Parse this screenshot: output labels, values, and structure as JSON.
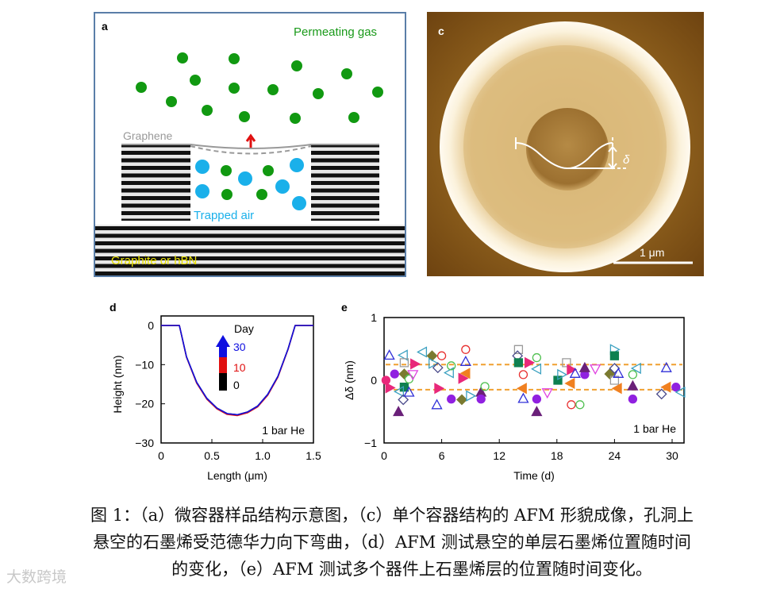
{
  "panel_a": {
    "label": "a",
    "permeating_gas": "Permeating gas",
    "graphene": "Graphene",
    "trapped_air": "Trapped air",
    "substrate": "Graphite or  hBN"
  },
  "panel_c": {
    "label": "c",
    "delta": "δ",
    "scale_bar": "1 μm"
  },
  "chart_data": [
    {
      "panel": "d",
      "type": "line",
      "xlabel": "Length (μm)",
      "ylabel": "Height (nm)",
      "xlim": [
        0,
        1.5
      ],
      "ylim": [
        -30,
        0
      ],
      "xticks": [
        "0",
        "0.5",
        "1.0",
        "1.5"
      ],
      "yticks": [
        "0",
        "−10",
        "−20",
        "−30"
      ],
      "annotation": "1 bar He",
      "legend_title": "Day",
      "legend": [
        "30",
        "10",
        "0"
      ],
      "x": [
        0,
        0.18,
        0.25,
        0.35,
        0.45,
        0.55,
        0.65,
        0.75,
        0.85,
        0.95,
        1.05,
        1.15,
        1.25,
        1.32,
        1.5
      ],
      "series": [
        {
          "name": "0",
          "color": "#000000",
          "values": [
            0,
            0,
            -8,
            -14.5,
            -18.6,
            -21.1,
            -22.5,
            -22.8,
            -22.1,
            -20.6,
            -17.6,
            -13,
            -6,
            0,
            0
          ]
        },
        {
          "name": "10",
          "color": "#e01010",
          "values": [
            0,
            0,
            -8.1,
            -14.7,
            -18.8,
            -21.3,
            -22.7,
            -23,
            -22.3,
            -20.8,
            -17.8,
            -13.2,
            -6.1,
            0,
            0
          ]
        },
        {
          "name": "30",
          "color": "#1010e0",
          "values": [
            0,
            0,
            -8,
            -14.5,
            -18.6,
            -21.1,
            -22.5,
            -22.8,
            -22.1,
            -20.6,
            -17.6,
            -13,
            -6,
            0,
            0
          ]
        }
      ]
    },
    {
      "panel": "e",
      "type": "scatter",
      "xlabel": "Time (d)",
      "ylabel": "Δδ (nm)",
      "xlim": [
        0,
        31.5
      ],
      "ylim": [
        -1,
        1
      ],
      "xticks": [
        "0",
        "6",
        "12",
        "18",
        "24",
        "30"
      ],
      "yticks": [
        "1",
        "0",
        "−1"
      ],
      "annotation": "1 bar He",
      "reference_lines": [
        0.25,
        -0.15
      ],
      "reference_color": "#f0a030",
      "colors": {
        "blue": "#3030d8",
        "purple": "#9020e0",
        "pink": "#e8287a",
        "dpurple": "#6a2079",
        "cyan": "#3aa0c0",
        "gray": "#9a9a9a",
        "olive": "#7a7a30",
        "dgreen": "#0e8050",
        "lgreen": "#50c050",
        "red": "#e83030",
        "navy": "#4a4a8a",
        "orange": "#f08020",
        "magenta": "#e040e0"
      },
      "points": [
        [
          0.55,
          0.4,
          "tu",
          "blue",
          0
        ],
        [
          1.1,
          0.1,
          "c",
          "purple",
          1
        ],
        [
          0.6,
          -0.12,
          "tr",
          "pink",
          1
        ],
        [
          0.2,
          0,
          "c",
          "pink",
          1
        ],
        [
          1.5,
          -0.5,
          "tu",
          "dpurple",
          1
        ],
        [
          2.0,
          0.4,
          "tl",
          "cyan",
          0
        ],
        [
          2.1,
          0.28,
          "s",
          "gray",
          0
        ],
        [
          2.1,
          0.1,
          "d",
          "olive",
          1
        ],
        [
          2.1,
          -0.11,
          "s",
          "dgreen",
          1
        ],
        [
          1.6,
          -0.18,
          "tl",
          "cyan",
          0
        ],
        [
          2.0,
          -0.31,
          "d",
          "navy",
          0
        ],
        [
          2.6,
          -0.19,
          "tu",
          "blue",
          0
        ],
        [
          2.6,
          0.02,
          "c",
          "lgreen",
          0
        ],
        [
          3.2,
          0.26,
          "tr",
          "pink",
          1
        ],
        [
          3.0,
          0.09,
          "td",
          "magenta",
          0
        ],
        [
          4.0,
          0.45,
          "tl",
          "cyan",
          0
        ],
        [
          5.0,
          0.39,
          "d",
          "olive",
          1
        ],
        [
          5.1,
          0.27,
          "tr",
          "cyan",
          0
        ],
        [
          5.6,
          0.2,
          "d",
          "navy",
          0
        ],
        [
          6.0,
          0.39,
          "c",
          "red",
          0
        ],
        [
          5.5,
          -0.39,
          "tu",
          "blue",
          0
        ],
        [
          5.7,
          -0.13,
          "tr",
          "pink",
          1
        ],
        [
          6.8,
          0.12,
          "tl",
          "cyan",
          0
        ],
        [
          7.0,
          0.23,
          "c",
          "lgreen",
          0
        ],
        [
          7.0,
          -0.3,
          "c",
          "purple",
          1
        ],
        [
          8.1,
          -0.31,
          "d",
          "olive",
          1
        ],
        [
          8.2,
          0.03,
          "tr",
          "pink",
          1
        ],
        [
          8.5,
          0.11,
          "tl",
          "orange",
          1
        ],
        [
          8.5,
          0.49,
          "c",
          "red",
          0
        ],
        [
          8.5,
          0.3,
          "tu",
          "blue",
          0
        ],
        [
          9.0,
          -0.25,
          "tr",
          "cyan",
          0
        ],
        [
          10.1,
          -0.19,
          "tu",
          "dpurple",
          1
        ],
        [
          10.1,
          -0.3,
          "c",
          "purple",
          1
        ],
        [
          10.5,
          -0.1,
          "c",
          "lgreen",
          0
        ],
        [
          14.0,
          0.49,
          "s",
          "gray",
          0
        ],
        [
          13.9,
          0.39,
          "d",
          "navy",
          0
        ],
        [
          14.0,
          0.28,
          "s",
          "dgreen",
          1
        ],
        [
          15.1,
          0.28,
          "tr",
          "pink",
          1
        ],
        [
          14.5,
          0.09,
          "c",
          "red",
          0
        ],
        [
          14.4,
          -0.13,
          "tl",
          "orange",
          1
        ],
        [
          14.5,
          -0.29,
          "tu",
          "blue",
          0
        ],
        [
          15.9,
          0.36,
          "c",
          "lgreen",
          0
        ],
        [
          15.9,
          0.18,
          "tl",
          "cyan",
          0
        ],
        [
          15.9,
          -0.3,
          "c",
          "purple",
          1
        ],
        [
          15.9,
          -0.5,
          "tu",
          "dpurple",
          1
        ],
        [
          17.0,
          -0.2,
          "td",
          "magenta",
          0
        ],
        [
          18.1,
          0,
          "s",
          "dgreen",
          1
        ],
        [
          18.5,
          0.09,
          "tr",
          "cyan",
          0
        ],
        [
          19.0,
          0.28,
          "s",
          "gray",
          0
        ],
        [
          19.5,
          0.17,
          "tr",
          "pink",
          1
        ],
        [
          19.4,
          -0.05,
          "tl",
          "orange",
          1
        ],
        [
          19.5,
          -0.39,
          "c",
          "red",
          0
        ],
        [
          20.4,
          -0.39,
          "c",
          "lgreen",
          0
        ],
        [
          19.9,
          0.11,
          "tu",
          "blue",
          0
        ],
        [
          20.9,
          0.09,
          "c",
          "purple",
          1
        ],
        [
          20.9,
          0.2,
          "tu",
          "dpurple",
          1
        ],
        [
          22.0,
          0.18,
          "td",
          "magenta",
          0
        ],
        [
          23.5,
          0.1,
          "d",
          "olive",
          1
        ],
        [
          24.0,
          0.49,
          "tr",
          "cyan",
          0
        ],
        [
          24.0,
          0.39,
          "s",
          "dgreen",
          1
        ],
        [
          24.0,
          0.19,
          "d",
          "navy",
          0
        ],
        [
          24.0,
          0,
          "s",
          "gray",
          0
        ],
        [
          24.4,
          0.11,
          "tu",
          "blue",
          0
        ],
        [
          24.3,
          -0.13,
          "tl",
          "orange",
          1
        ],
        [
          25.9,
          0.09,
          "c",
          "lgreen",
          0
        ],
        [
          26.3,
          0.19,
          "tl",
          "cyan",
          0
        ],
        [
          25.9,
          -0.09,
          "tu",
          "dpurple",
          1
        ],
        [
          25.9,
          -0.3,
          "c",
          "purple",
          1
        ],
        [
          29.4,
          0.2,
          "tu",
          "blue",
          0
        ],
        [
          28.9,
          -0.22,
          "d",
          "navy",
          0
        ],
        [
          29.4,
          -0.11,
          "tl",
          "orange",
          1
        ],
        [
          30.4,
          -0.11,
          "c",
          "purple",
          1
        ],
        [
          30.9,
          -0.19,
          "tl",
          "cyan",
          0
        ]
      ]
    }
  ],
  "caption": {
    "line1": "图 1：（a）微容器样品结构示意图，（c）单个容器结构的 AFM 形貌成像，孔洞上",
    "line2": "悬空的石墨烯受范德华力向下弯曲，（d）AFM 测试悬空的单层石墨烯位置随时间",
    "line3": "的变化，（e）AFM 测试多个器件上石墨烯层的位置随时间变化。"
  },
  "watermark": "大数跨境"
}
